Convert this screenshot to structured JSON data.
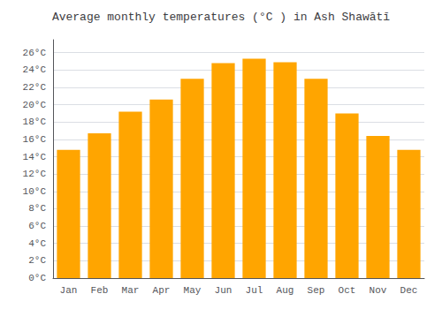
{
  "chart_data": {
    "type": "bar",
    "title": "Average monthly temperatures (°C ) in Ash Shawātī",
    "categories": [
      "Jan",
      "Feb",
      "Mar",
      "Apr",
      "May",
      "Jun",
      "Jul",
      "Aug",
      "Sep",
      "Oct",
      "Nov",
      "Dec"
    ],
    "values": [
      14.8,
      16.7,
      19.2,
      20.6,
      23.0,
      24.8,
      25.3,
      24.9,
      23.0,
      19.0,
      16.4,
      14.8
    ],
    "color": "#FFA500",
    "ylim": [
      0,
      27.5
    ],
    "yticks": [
      {
        "value": 0,
        "label": "0°C"
      },
      {
        "value": 2,
        "label": "2°C"
      },
      {
        "value": 4,
        "label": "4°C"
      },
      {
        "value": 6,
        "label": "6°C"
      },
      {
        "value": 8,
        "label": "8°C"
      },
      {
        "value": 10,
        "label": "10°C"
      },
      {
        "value": 12,
        "label": "12°C"
      },
      {
        "value": 14,
        "label": "14°C"
      },
      {
        "value": 16,
        "label": "16°C"
      },
      {
        "value": 18,
        "label": "18°C"
      },
      {
        "value": 20,
        "label": "20°C"
      },
      {
        "value": 22,
        "label": "22°C"
      },
      {
        "value": 24,
        "label": "24°C"
      },
      {
        "value": 26,
        "label": "26°C"
      }
    ],
    "grid": true
  }
}
